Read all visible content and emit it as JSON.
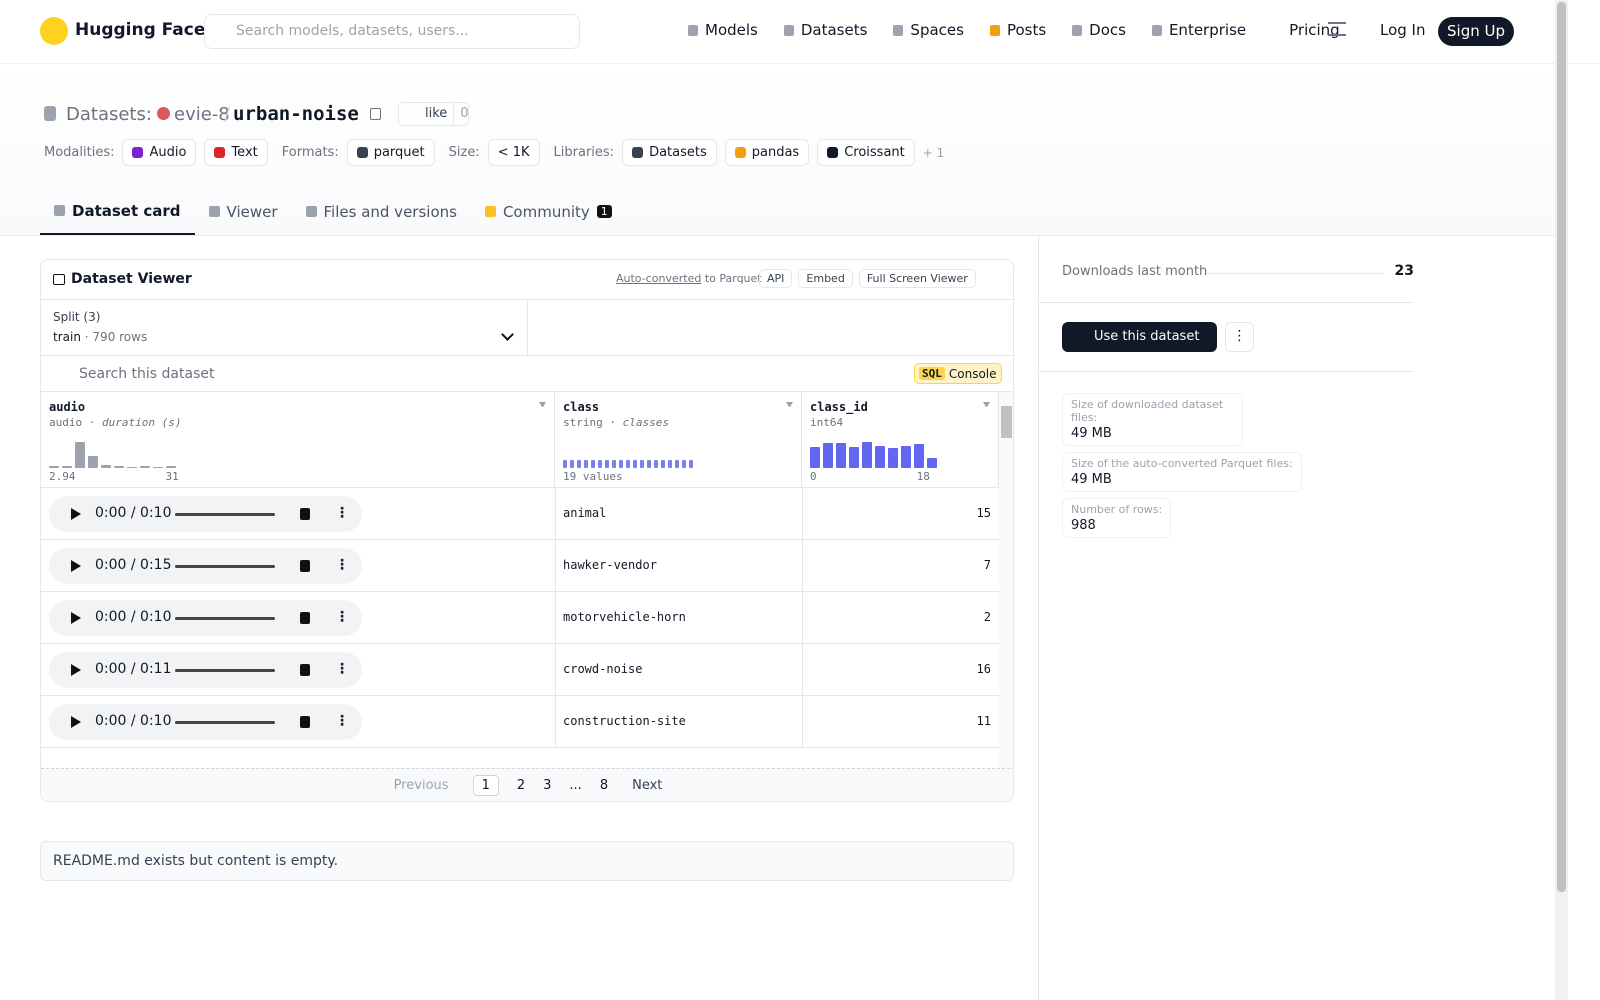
{
  "header": {
    "brand": "Hugging Face",
    "search_placeholder": "Search models, datasets, users...",
    "nav": [
      "Models",
      "Datasets",
      "Spaces",
      "Posts",
      "Docs",
      "Enterprise",
      "Pricing"
    ],
    "login": "Log In",
    "signup": "Sign Up"
  },
  "dataset": {
    "section": "Datasets:",
    "owner": "evie-8",
    "separator": "/",
    "name": "urban-noise",
    "like": "like",
    "like_count": 0,
    "tags": [
      {
        "label": "Modalities:",
        "items": [
          "Audio",
          "Text"
        ]
      },
      {
        "label": "Formats:",
        "items": [
          "parquet"
        ]
      },
      {
        "label": "Size:",
        "items": [
          "< 1K"
        ]
      },
      {
        "label": "Libraries:",
        "items": [
          "Datasets",
          "pandas",
          "Croissant"
        ]
      }
    ],
    "more": "+ 1"
  },
  "tabs": {
    "items": [
      "Dataset card",
      "Viewer",
      "Files and versions",
      "Community"
    ],
    "community_count": 1
  },
  "viewer": {
    "title": "Dataset Viewer",
    "auto": "Auto-converted",
    "to_parquet": "to Parquet",
    "buttons": [
      "API",
      "Embed",
      "Full Screen Viewer"
    ],
    "split_label": "Split (3)",
    "split": "train",
    "rows_label": "790 rows",
    "search_placeholder": "Search this dataset",
    "sql": "SQL",
    "console": "Console",
    "columns": [
      {
        "name": "audio",
        "type": "audio",
        "stat": "duration (s)",
        "min": 2.94,
        "max": 31,
        "histogram": [
          2,
          2,
          26,
          12,
          3,
          2,
          0,
          2,
          0,
          2
        ]
      },
      {
        "name": "class",
        "type": "string",
        "stat": "classes",
        "summary": "19 values",
        "histogram": [
          1,
          1,
          1,
          1,
          1,
          1,
          1,
          1,
          1,
          1,
          1,
          1,
          1,
          1,
          1,
          1,
          1,
          1,
          1
        ]
      },
      {
        "name": "class_id",
        "type": "int64",
        "min": 0,
        "max": 18,
        "histogram": [
          20,
          24,
          24,
          20,
          25,
          21,
          19,
          21,
          23,
          10
        ]
      }
    ],
    "rows": [
      {
        "time": "0:00 / 0:10",
        "class": "animal",
        "class_id": 15
      },
      {
        "time": "0:00 / 0:15",
        "class": "hawker-vendor",
        "class_id": 7
      },
      {
        "time": "0:00 / 0:10",
        "class": "motorvehicle-horn",
        "class_id": 2
      },
      {
        "time": "0:00 / 0:11",
        "class": "crowd-noise",
        "class_id": 16
      },
      {
        "time": "0:00 / 0:10",
        "class": "construction-site",
        "class_id": 11
      }
    ],
    "pagination": {
      "previous": "Previous",
      "pages": [
        "1",
        "2",
        "3",
        "...",
        "8"
      ],
      "next": "Next"
    }
  },
  "readme": "README.md exists but content is empty.",
  "sidebar": {
    "downloads_label": "Downloads last month",
    "downloads": 23,
    "use": "Use this dataset",
    "stats": [
      {
        "label": "Size of downloaded dataset files:",
        "value": "49 MB"
      },
      {
        "label": "Size of the auto-converted Parquet files:",
        "value": "49 MB"
      },
      {
        "label": "Number of rows:",
        "value": 988
      }
    ]
  }
}
